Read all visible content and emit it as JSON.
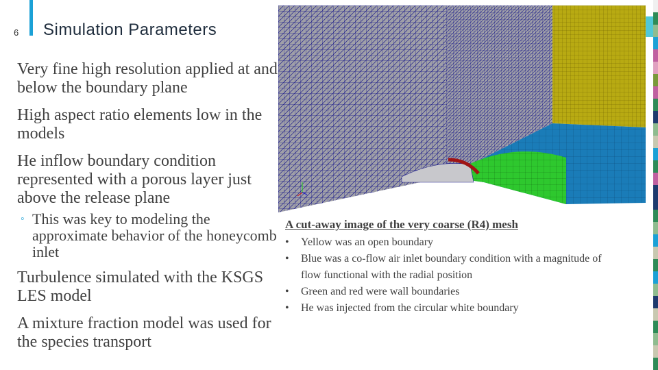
{
  "slide": {
    "number": "6",
    "title": "Simulation Parameters"
  },
  "bullets": [
    "Very fine high resolution applied at and below the boundary plane",
    "High aspect ratio elements low in the models",
    "He inflow boundary condition represented with a porous layer just above the release plane",
    "Turbulence simulated with the KSGS LES model",
    "A mixture fraction model was used for the species transport"
  ],
  "sub_bullet": {
    "marker": "◦",
    "text": "This was key to modeling the approximate behavior of the honeycomb inlet"
  },
  "caption": {
    "title": "A cut-away image of the very coarse (R4) mesh",
    "bullet_marker": "•",
    "items": [
      "Yellow was an open boundary",
      "Blue was a co-flow air inlet boundary condition with a magnitude of flow functional with the radial position",
      "Green and red were wall boundaries",
      "He was injected from the circular white boundary"
    ]
  },
  "colors": {
    "accent": "#1ba1d6",
    "mesh_wall": "#a0a0a8",
    "mesh_line": "#1e1e8c",
    "open_boundary": "#b8aa12",
    "coflow_inlet": "#1a7cb8",
    "wall_boundary": "#2ec82e",
    "wall_boundary_red": "#a01414"
  }
}
